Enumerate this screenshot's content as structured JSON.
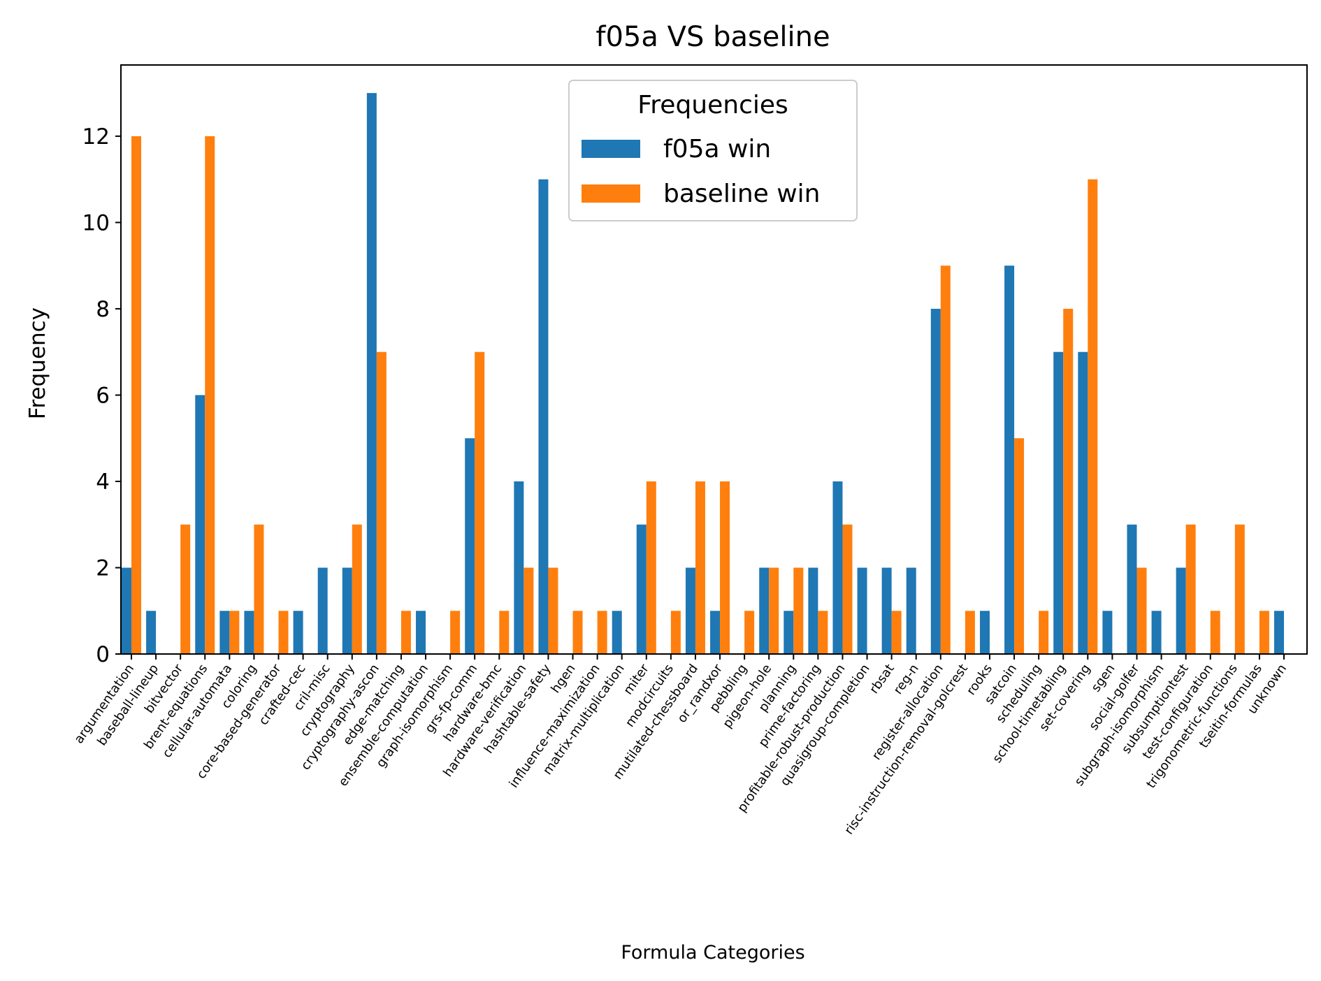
{
  "chart_data": {
    "type": "bar",
    "title": "f05a VS baseline",
    "xlabel": "Formula Categories",
    "ylabel": "Frequency",
    "ylim": [
      0,
      13.65
    ],
    "yticks": [
      0,
      2,
      4,
      6,
      8,
      10,
      12
    ],
    "grid": false,
    "legend": {
      "title": "Frequencies",
      "placement": "top-center"
    },
    "categories": [
      "argumentation",
      "baseball-lineup",
      "bitvector",
      "brent-equations",
      "cellular-automata",
      "coloring",
      "core-based-generator",
      "crafted-cec",
      "cril-misc",
      "cryptography",
      "cryptography-ascon",
      "edge-matching",
      "ensemble-computation",
      "graph-isomorphism",
      "grs-fp-comm",
      "hardware-bmc",
      "hardware-verification",
      "hashtable-safety",
      "hgen",
      "influence-maximization",
      "matrix-multiplication",
      "miter",
      "modcircuits",
      "mutilated-chessboard",
      "or_randxor",
      "pebbling",
      "pigeon-hole",
      "planning",
      "prime-factoring",
      "profitable-robust-production",
      "quasigroup-completion",
      "rbsat",
      "reg-n",
      "register-allocation",
      "risc-instruction-removal-golcrest",
      "rooks",
      "satcoin",
      "scheduling",
      "school-timetabling",
      "set-covering",
      "sgen",
      "social-golfer",
      "subgraph-isomorphism",
      "subsumptiontest",
      "test-configuration",
      "trigonometric-functions",
      "tseitin-formulas",
      "unknown"
    ],
    "series": [
      {
        "name": "f05a win",
        "color": "#1f77b4",
        "values": [
          2,
          1,
          0,
          6,
          1,
          1,
          0,
          1,
          2,
          2,
          13,
          0,
          1,
          0,
          5,
          0,
          4,
          11,
          0,
          0,
          1,
          3,
          0,
          2,
          1,
          0,
          2,
          1,
          2,
          4,
          2,
          2,
          2,
          8,
          0,
          1,
          9,
          0,
          7,
          7,
          1,
          3,
          1,
          2,
          0,
          0,
          0,
          1
        ]
      },
      {
        "name": "baseline win",
        "color": "#ff7f0e",
        "values": [
          12,
          0,
          3,
          12,
          1,
          3,
          1,
          0,
          0,
          3,
          7,
          1,
          0,
          1,
          7,
          1,
          2,
          2,
          1,
          1,
          0,
          4,
          1,
          4,
          4,
          1,
          2,
          2,
          1,
          3,
          0,
          1,
          0,
          9,
          1,
          0,
          5,
          1,
          8,
          11,
          0,
          2,
          0,
          3,
          1,
          3,
          1,
          0
        ]
      }
    ]
  }
}
